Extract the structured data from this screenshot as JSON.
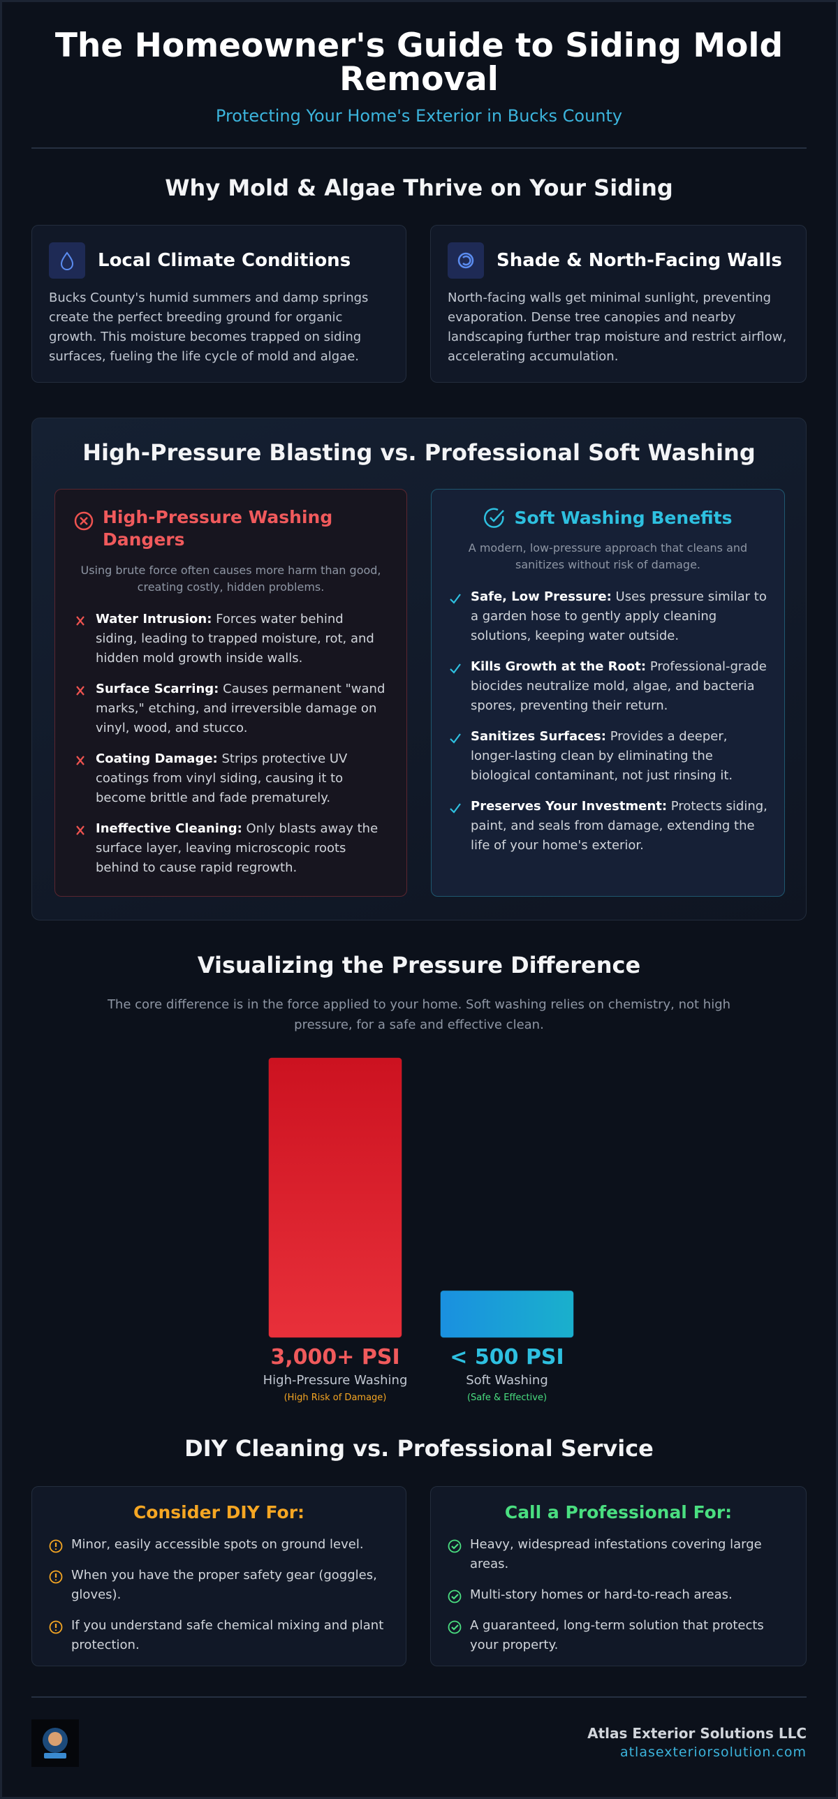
{
  "header": {
    "title": "The Homeowner's Guide to Siding Mold Removal",
    "subtitle": "Protecting Your Home's Exterior in Bucks County"
  },
  "causes": {
    "heading": "Why Mold & Algae Thrive on Your Siding",
    "cards": [
      {
        "title": "Local Climate Conditions",
        "text": "Bucks County's humid summers and damp springs create the perfect breeding ground for organic growth. This moisture becomes trapped on siding surfaces, fueling the life cycle of mold and algae."
      },
      {
        "title": "Shade & North-Facing Walls",
        "text": "North-facing walls get minimal sunlight, preventing evaporation. Dense tree canopies and nearby landscaping further trap moisture and restrict airflow, accelerating accumulation."
      }
    ]
  },
  "comparison": {
    "heading": "High-Pressure Blasting vs. Professional Soft Washing",
    "dangers": {
      "title": "High-Pressure Washing Dangers",
      "intro": "Using brute force often causes more harm than good, creating costly, hidden problems.",
      "items": [
        {
          "title": "Water Intrusion:",
          "text": "Forces water behind siding, leading to trapped moisture, rot, and hidden mold growth inside walls."
        },
        {
          "title": "Surface Scarring:",
          "text": "Causes permanent \"wand marks,\" etching, and irreversible damage on vinyl, wood, and stucco."
        },
        {
          "title": "Coating Damage:",
          "text": "Strips protective UV coatings from vinyl siding, causing it to become brittle and fade prematurely."
        },
        {
          "title": "Ineffective Cleaning:",
          "text": "Only blasts away the surface layer, leaving microscopic roots behind to cause rapid regrowth."
        }
      ]
    },
    "benefits": {
      "title": "Soft Washing Benefits",
      "intro": "A modern, low-pressure approach that cleans and sanitizes without risk of damage.",
      "items": [
        {
          "title": "Safe, Low Pressure:",
          "text": "Uses pressure similar to a garden hose to gently apply cleaning solutions, keeping water outside."
        },
        {
          "title": "Kills Growth at the Root:",
          "text": "Professional-grade biocides neutralize mold, algae, and bacteria spores, preventing their return."
        },
        {
          "title": "Sanitizes Surfaces:",
          "text": "Provides a deeper, longer-lasting clean by eliminating the biological contaminant, not just rinsing it."
        },
        {
          "title": "Preserves Your Investment:",
          "text": "Protects siding, paint, and seals from damage, extending the life of your home's exterior."
        }
      ]
    }
  },
  "chart_data": {
    "type": "bar",
    "title": "Visualizing the Pressure Difference",
    "subtitle": "The core difference is in the force applied to your home. Soft washing relies on chemistry, not high pressure, for a safe and effective clean.",
    "categories": [
      "High-Pressure Washing",
      "Soft Washing"
    ],
    "values": [
      3000,
      500
    ],
    "value_labels": [
      "3,000+ PSI",
      "< 500 PSI"
    ],
    "notes": [
      "(High Risk of Damage)",
      "(Safe & Effective)"
    ],
    "colors": [
      "#e0262f",
      "#1ba0d8"
    ]
  },
  "diy": {
    "heading": "DIY Cleaning vs. Professional Service",
    "diy_card": {
      "title": "Consider DIY For:",
      "items": [
        "Minor, easily accessible spots on ground level.",
        "When you have the proper safety gear (goggles, gloves).",
        "If you understand safe chemical mixing and plant protection."
      ]
    },
    "pro_card": {
      "title": "Call a Professional For:",
      "items": [
        "Heavy, widespread infestations covering large areas.",
        "Multi-story homes or hard-to-reach areas.",
        "A guaranteed, long-term solution that protects your property."
      ]
    }
  },
  "footer": {
    "company": "Atlas Exterior Solutions LLC",
    "url": "atlasexteriorsolution.com"
  }
}
